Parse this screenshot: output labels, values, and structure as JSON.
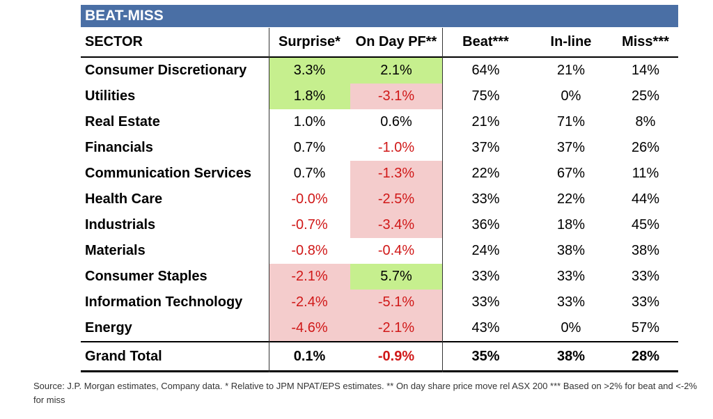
{
  "title": "BEAT-MISS",
  "headers": [
    "SECTOR",
    "Surprise*",
    "On Day PF**",
    "Beat***",
    "In-line",
    "Miss***"
  ],
  "colors": {
    "title_bar": "#4a6fa5",
    "highlight_green": "#c6ef8e",
    "highlight_red": "#f4cccc",
    "negative_text": "#d01818"
  },
  "rows": [
    {
      "sector": "Consumer Discretionary",
      "surprise": "3.3%",
      "onday": "2.1%",
      "beat": "64%",
      "inline": "21%",
      "miss": "14%",
      "surprise_hl": "green",
      "onday_hl": "green"
    },
    {
      "sector": "Utilities",
      "surprise": "1.8%",
      "onday": "-3.1%",
      "beat": "75%",
      "inline": "0%",
      "miss": "25%",
      "surprise_hl": "green",
      "onday_hl": "red"
    },
    {
      "sector": "Real Estate",
      "surprise": "1.0%",
      "onday": "0.6%",
      "beat": "21%",
      "inline": "71%",
      "miss": "8%",
      "surprise_hl": "",
      "onday_hl": ""
    },
    {
      "sector": "Financials",
      "surprise": "0.7%",
      "onday": "-1.0%",
      "beat": "37%",
      "inline": "37%",
      "miss": "26%",
      "surprise_hl": "",
      "onday_hl": ""
    },
    {
      "sector": "Communication Services",
      "surprise": "0.7%",
      "onday": "-1.3%",
      "beat": "22%",
      "inline": "67%",
      "miss": "11%",
      "surprise_hl": "",
      "onday_hl": "red"
    },
    {
      "sector": "Health Care",
      "surprise": "-0.0%",
      "onday": "-2.5%",
      "beat": "33%",
      "inline": "22%",
      "miss": "44%",
      "surprise_hl": "",
      "onday_hl": "red"
    },
    {
      "sector": "Industrials",
      "surprise": "-0.7%",
      "onday": "-3.4%",
      "beat": "36%",
      "inline": "18%",
      "miss": "45%",
      "surprise_hl": "",
      "onday_hl": "red"
    },
    {
      "sector": "Materials",
      "surprise": "-0.8%",
      "onday": "-0.4%",
      "beat": "24%",
      "inline": "38%",
      "miss": "38%",
      "surprise_hl": "",
      "onday_hl": ""
    },
    {
      "sector": "Consumer Staples",
      "surprise": "-2.1%",
      "onday": "5.7%",
      "beat": "33%",
      "inline": "33%",
      "miss": "33%",
      "surprise_hl": "red",
      "onday_hl": "green"
    },
    {
      "sector": "Information Technology",
      "surprise": "-2.4%",
      "onday": "-5.1%",
      "beat": "33%",
      "inline": "33%",
      "miss": "33%",
      "surprise_hl": "red",
      "onday_hl": "red"
    },
    {
      "sector": "Energy",
      "surprise": "-4.6%",
      "onday": "-2.1%",
      "beat": "43%",
      "inline": "0%",
      "miss": "57%",
      "surprise_hl": "red",
      "onday_hl": "red"
    }
  ],
  "total": {
    "sector": "Grand Total",
    "surprise": "0.1%",
    "onday": "-0.9%",
    "beat": "35%",
    "inline": "38%",
    "miss": "28%"
  },
  "source": "Source: J.P. Morgan estimates, Company data. * Relative to JPM NPAT/EPS estimates. ** On day share price move rel ASX 200 *** Based on >2% for beat and <-2% for miss",
  "chart_data": {
    "type": "table",
    "title": "BEAT-MISS",
    "columns": [
      "SECTOR",
      "Surprise*",
      "On Day PF**",
      "Beat***",
      "In-line",
      "Miss***"
    ],
    "rows": [
      [
        "Consumer Discretionary",
        "3.3%",
        "2.1%",
        "64%",
        "21%",
        "14%"
      ],
      [
        "Utilities",
        "1.8%",
        "-3.1%",
        "75%",
        "0%",
        "25%"
      ],
      [
        "Real Estate",
        "1.0%",
        "0.6%",
        "21%",
        "71%",
        "8%"
      ],
      [
        "Financials",
        "0.7%",
        "-1.0%",
        "37%",
        "37%",
        "26%"
      ],
      [
        "Communication Services",
        "0.7%",
        "-1.3%",
        "22%",
        "67%",
        "11%"
      ],
      [
        "Health Care",
        "-0.0%",
        "-2.5%",
        "33%",
        "22%",
        "44%"
      ],
      [
        "Industrials",
        "-0.7%",
        "-3.4%",
        "36%",
        "18%",
        "45%"
      ],
      [
        "Materials",
        "-0.8%",
        "-0.4%",
        "24%",
        "38%",
        "38%"
      ],
      [
        "Consumer Staples",
        "-2.1%",
        "5.7%",
        "33%",
        "33%",
        "33%"
      ],
      [
        "Information Technology",
        "-2.4%",
        "-5.1%",
        "33%",
        "33%",
        "33%"
      ],
      [
        "Energy",
        "-4.6%",
        "-2.1%",
        "43%",
        "0%",
        "57%"
      ],
      [
        "Grand Total",
        "0.1%",
        "-0.9%",
        "35%",
        "38%",
        "28%"
      ]
    ]
  }
}
